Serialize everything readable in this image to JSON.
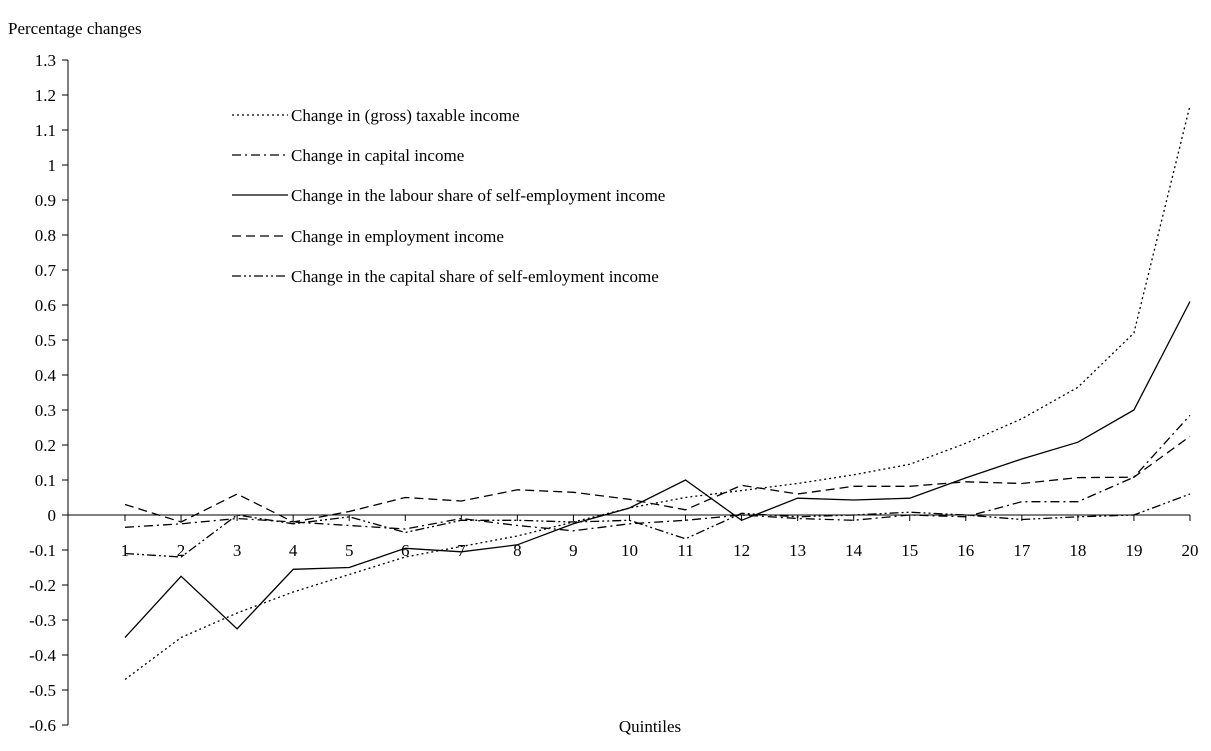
{
  "chart_data": {
    "type": "line",
    "title": "",
    "ylabel": "Percentage changes",
    "xlabel": "Quintiles",
    "ylim": [
      -0.6,
      1.3
    ],
    "yticks": [
      1.3,
      1.2,
      1.1,
      1,
      0.9,
      0.8,
      0.7,
      0.6,
      0.5,
      0.4,
      0.3,
      0.2,
      0.1,
      0,
      -0.1,
      -0.2,
      -0.3,
      -0.4,
      -0.5,
      -0.6
    ],
    "ytick_labels": [
      "1.3",
      "1.2",
      "1.1",
      "1",
      "0.9",
      "0.8",
      "0.7",
      "0.6",
      "0.5",
      "0.4",
      "0.3",
      "0.2",
      "0.1",
      "0",
      "-0.1",
      "-0.2",
      "-0.3",
      "-0.4",
      "-0.5",
      "-0.6"
    ],
    "x": [
      1,
      2,
      3,
      4,
      5,
      6,
      7,
      8,
      9,
      10,
      11,
      12,
      13,
      14,
      15,
      16,
      17,
      18,
      19,
      20
    ],
    "xtick_labels": [
      "1",
      "2",
      "3",
      "4",
      "5",
      "6",
      "7",
      "8",
      "9",
      "10",
      "11",
      "12",
      "13",
      "14",
      "15",
      "16",
      "17",
      "18",
      "19",
      "20"
    ],
    "grid": false,
    "legend_position": "top-left",
    "series": [
      {
        "name": "Change in (gross) taxable income",
        "dash": "dotted",
        "values": [
          -0.47,
          -0.35,
          -0.28,
          -0.22,
          -0.17,
          -0.12,
          -0.09,
          -0.06,
          -0.02,
          0.02,
          0.05,
          0.07,
          0.09,
          0.115,
          0.145,
          0.205,
          0.275,
          0.365,
          0.52,
          1.17
        ]
      },
      {
        "name": "Change in capital income",
        "dash": "dash-dot",
        "values": [
          -0.035,
          -0.025,
          -0.01,
          -0.02,
          -0.03,
          -0.04,
          -0.01,
          -0.03,
          -0.045,
          -0.025,
          -0.015,
          0.0,
          -0.01,
          -0.015,
          0.0,
          -0.005,
          0.038,
          0.038,
          0.108,
          0.285
        ]
      },
      {
        "name": "Change in the labour share of self-employment income",
        "dash": "solid",
        "values": [
          -0.35,
          -0.175,
          -0.325,
          -0.155,
          -0.15,
          -0.095,
          -0.105,
          -0.085,
          -0.025,
          0.02,
          0.1,
          -0.015,
          0.048,
          0.043,
          0.048,
          0.106,
          0.16,
          0.208,
          0.3,
          0.61
        ]
      },
      {
        "name": "Change in employment income",
        "dash": "dashed",
        "values": [
          0.03,
          -0.02,
          0.06,
          -0.02,
          0.01,
          0.05,
          0.04,
          0.072,
          0.065,
          0.045,
          0.015,
          0.085,
          0.06,
          0.082,
          0.082,
          0.095,
          0.09,
          0.107,
          0.108,
          0.225
        ]
      },
      {
        "name": "Change in the capital share of self-emloyment income",
        "dash": "dash-dot-dot",
        "values": [
          -0.11,
          -0.12,
          0.0,
          -0.025,
          -0.005,
          -0.05,
          -0.015,
          -0.015,
          -0.02,
          -0.015,
          -0.068,
          0.005,
          -0.005,
          0.0,
          0.008,
          0.0,
          -0.013,
          -0.005,
          0.0,
          0.06
        ]
      }
    ]
  }
}
